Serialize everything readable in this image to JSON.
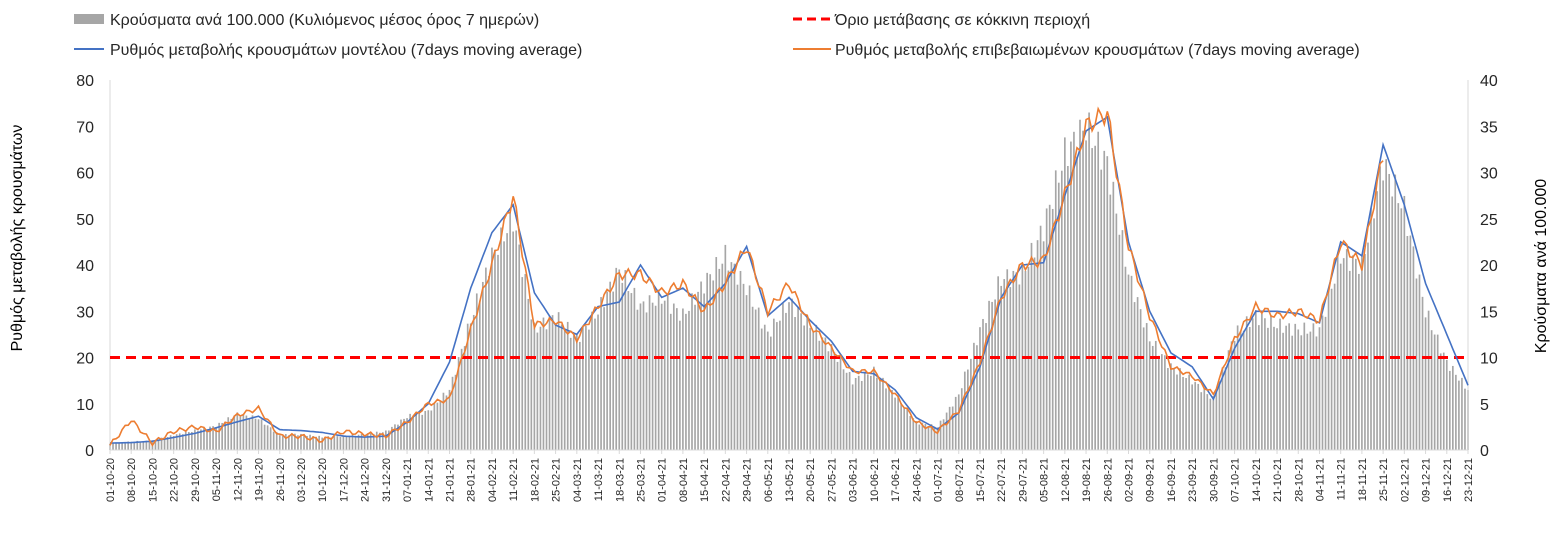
{
  "chart_data": {
    "type": "bar+line",
    "legend": [
      {
        "key": "cases",
        "label": "Κρούσματα ανά 100.000 (Κυλιόμενος μέσος όρος 7 ημερών)",
        "color": "#a6a6a6",
        "kind": "bar"
      },
      {
        "key": "threshold",
        "label": "Όριο μετάβασης σε κόκκινη περιοχή",
        "color": "#ff0000",
        "kind": "dashed-line"
      },
      {
        "key": "model",
        "label": "Ρυθμός μεταβολής κρουσμάτων μοντέλου (7days moving average)",
        "color": "#4472c4",
        "kind": "line"
      },
      {
        "key": "confirmed",
        "label": "Ρυθμός μεταβολής επιβεβαιωμένων κρουσμάτων (7days moving average)",
        "color": "#ed7d31",
        "kind": "line"
      }
    ],
    "ylabel_left": "Ρυθμός μεταβολής κρουσμάτων",
    "ylabel_right": "Κρούσματα ανά 100.000",
    "ylim_left": [
      0,
      80
    ],
    "ylim_right": [
      0,
      40
    ],
    "yticks_left": [
      "0",
      "10",
      "20",
      "30",
      "40",
      "50",
      "60",
      "70",
      "80"
    ],
    "yticks_right": [
      "0",
      "5",
      "10",
      "15",
      "20",
      "25",
      "30",
      "35",
      "40"
    ],
    "threshold_left": 20,
    "x_start": "2020-10-01",
    "x_end": "2021-12-23",
    "x_tick_labels": [
      "01-10-20",
      "08-10-20",
      "15-10-20",
      "22-10-20",
      "29-10-20",
      "05-11-20",
      "12-11-20",
      "19-11-20",
      "26-11-20",
      "03-12-20",
      "10-12-20",
      "17-12-20",
      "24-12-20",
      "31-12-20",
      "07-01-21",
      "14-01-21",
      "21-01-21",
      "28-01-21",
      "04-02-21",
      "11-02-21",
      "18-02-21",
      "25-02-21",
      "04-03-21",
      "11-03-21",
      "18-03-21",
      "25-03-21",
      "01-04-21",
      "08-04-21",
      "15-04-21",
      "22-04-21",
      "29-04-21",
      "06-05-21",
      "13-05-21",
      "20-05-21",
      "27-05-21",
      "03-06-21",
      "10-06-21",
      "17-06-21",
      "24-06-21",
      "01-07-21",
      "08-07-21",
      "15-07-21",
      "22-07-21",
      "29-07-21",
      "05-08-21",
      "12-08-21",
      "19-08-21",
      "26-08-21",
      "02-09-21",
      "09-09-21",
      "16-09-21",
      "23-09-21",
      "30-09-21",
      "07-10-21",
      "14-10-21",
      "21-10-21",
      "28-10-21",
      "04-11-21",
      "11-11-21",
      "18-11-21",
      "25-11-21",
      "02-12-21",
      "09-12-21",
      "16-12-21",
      "23-12-21"
    ],
    "cases_weekly_right": [
      0.7,
      0.9,
      1.0,
      1.6,
      2.1,
      2.6,
      3.9,
      3.4,
      1.6,
      1.7,
      1.4,
      1.5,
      1.7,
      2.0,
      3.6,
      4.2,
      6.5,
      14.0,
      21.0,
      25.0,
      13.0,
      14.5,
      12.0,
      15.0,
      19.5,
      15.5,
      16.5,
      14.5,
      18.0,
      21.0,
      17.5,
      12.5,
      16.0,
      13.5,
      11.0,
      7.5,
      8.5,
      6.0,
      3.0,
      2.5,
      6.0,
      13.0,
      18.5,
      19.0,
      24.0,
      32.0,
      35.0,
      31.0,
      19.0,
      12.0,
      9.0,
      7.5,
      5.5,
      12.5,
      14.5,
      13.5,
      13.0,
      13.0,
      21.0,
      20.0,
      31.0,
      26.0,
      15.0,
      9.5,
      6.5
    ],
    "model_weekly_left": [
      1.5,
      1.6,
      1.9,
      2.7,
      3.6,
      4.8,
      6.1,
      7.3,
      4.4,
      4.2,
      3.8,
      3.0,
      2.8,
      3.0,
      6.0,
      10.0,
      19.0,
      35.0,
      47.0,
      53.0,
      34.0,
      27.0,
      25.0,
      31.0,
      32.0,
      40.0,
      33.0,
      35.0,
      31.0,
      36.0,
      44.0,
      29.0,
      33.0,
      28.0,
      23.5,
      17.0,
      16.5,
      13.0,
      7.0,
      4.5,
      8.0,
      18.0,
      33.0,
      40.0,
      40.5,
      55.0,
      69.0,
      72.0,
      45.0,
      30.0,
      21.0,
      18.0,
      11.0,
      22.0,
      30.0,
      30.0,
      29.5,
      27.5,
      45.0,
      42.0,
      66.0,
      53.0,
      36.0,
      25.0,
      14.0
    ],
    "confirmed_weekly_left": [
      1.0,
      6.5,
      1.5,
      4.0,
      5.0,
      4.0,
      7.5,
      9.0,
      3.0,
      3.0,
      2.0,
      4.0,
      3.5,
      3.0,
      6.0,
      10.0,
      11.0,
      26.0,
      40.0,
      55.0,
      27.0,
      28.0,
      24.0,
      31.0,
      38.0,
      38.0,
      34.0,
      36.0,
      30.0,
      36.0,
      44.0,
      30.0,
      36.0,
      27.0,
      22.0,
      17.0,
      17.0,
      12.0,
      6.0,
      4.0,
      8.5,
      19.0,
      33.0,
      40.0,
      41.0,
      55.0,
      70.0,
      73.0,
      44.0,
      29.0,
      18.0,
      16.0,
      12.0,
      24.0,
      31.0,
      29.0,
      30.0,
      28.0,
      45.0,
      40.0,
      64.0,
      null,
      null,
      null,
      null
    ]
  }
}
